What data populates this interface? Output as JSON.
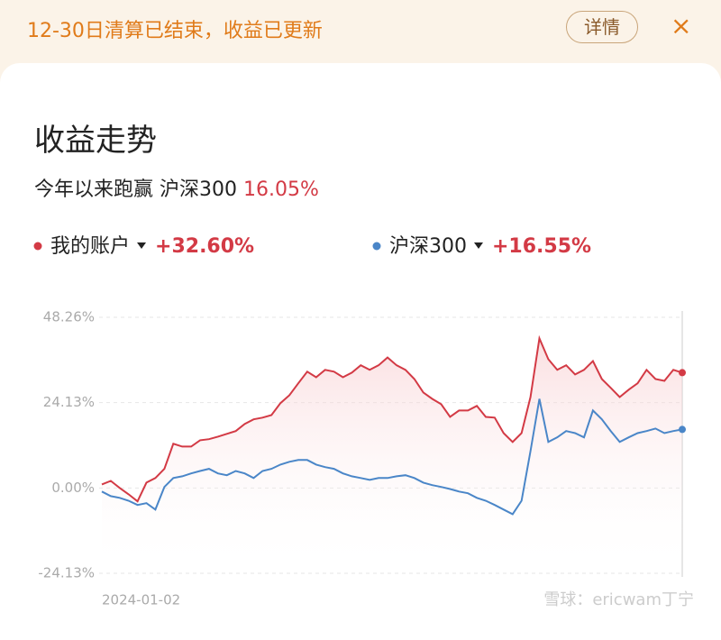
{
  "banner": {
    "text": "12-30日清算已结束，收益已更新",
    "button": "详情",
    "close": "×"
  },
  "card": {
    "title": "收益走势",
    "subtitle": "今年以来跑赢 沪深300",
    "subtitle_value": "16.05%"
  },
  "watermark": "雪球：ericwam丁宁",
  "chart_data": {
    "type": "line",
    "categories": [
      "2024-01-02",
      null,
      null,
      null,
      null,
      null,
      null,
      null,
      null,
      null,
      null,
      null,
      null,
      null,
      null,
      null,
      null,
      null,
      null,
      null,
      null,
      null,
      null,
      null,
      null,
      null,
      null,
      null,
      null,
      null,
      null,
      null,
      null,
      null,
      null,
      null,
      null,
      null,
      null,
      null,
      null,
      null,
      null,
      null,
      null,
      null,
      null,
      null,
      null,
      null,
      null,
      null,
      null,
      null,
      null,
      null,
      null,
      null,
      null,
      null,
      null,
      null,
      null,
      null,
      null,
      null
    ],
    "ylim": [
      -24.13,
      48.26
    ],
    "yticks": [
      {
        "value": 48.26,
        "label": "48.26%"
      },
      {
        "value": 24.13,
        "label": "24.13%"
      },
      {
        "value": 0,
        "label": "0.00%"
      },
      {
        "value": -24.13,
        "label": "-24.13%"
      }
    ],
    "grid": true,
    "series": [
      {
        "name": "我的账户",
        "color": "#d33a45",
        "legend_label": "+32.60%",
        "values": [
          1.0,
          2.0,
          0,
          -1.8,
          -3.8,
          1.5,
          2.8,
          5.4,
          12.5,
          11.7,
          11.7,
          13.5,
          13.8,
          14.5,
          15.3,
          16.1,
          18.1,
          19.4,
          19.9,
          20.6,
          24.0,
          26.2,
          29.6,
          32.9,
          31.3,
          33.4,
          32.9,
          31.3,
          32.6,
          34.7,
          33.4,
          34.7,
          36.9,
          34.7,
          33.4,
          30.8,
          27.0,
          25.2,
          23.7,
          20.1,
          21.9,
          21.9,
          23.2,
          20.1,
          19.9,
          15.5,
          13.0,
          15.5,
          25.7,
          42.3,
          36.4,
          33.4,
          34.7,
          32.1,
          33.4,
          35.9,
          30.8,
          28.3,
          25.7,
          27.8,
          29.6,
          33.4,
          30.8,
          30.3,
          33.4,
          32.6
        ]
      },
      {
        "name": "沪深300",
        "color": "#4a86c8",
        "legend_label": "+16.55%",
        "values": [
          -1.0,
          -2.3,
          -2.8,
          -3.6,
          -4.8,
          -4.3,
          -6.1,
          0.3,
          2.8,
          3.3,
          4.1,
          4.8,
          5.4,
          4.1,
          3.6,
          4.8,
          4.1,
          2.8,
          4.8,
          5.4,
          6.6,
          7.4,
          7.9,
          7.9,
          6.6,
          5.9,
          5.4,
          4.1,
          3.3,
          2.8,
          2.3,
          2.8,
          2.8,
          3.3,
          3.6,
          2.8,
          1.5,
          0.8,
          0.3,
          -0.3,
          -1.0,
          -1.5,
          -2.8,
          -3.6,
          -4.8,
          -6.1,
          -7.4,
          -3.6,
          10.4,
          25.2,
          13.0,
          14.3,
          16.1,
          15.5,
          14.3,
          21.9,
          19.4,
          16.1,
          13.0,
          14.3,
          15.5,
          16.1,
          16.8,
          15.5,
          16.1,
          16.55
        ]
      }
    ]
  }
}
